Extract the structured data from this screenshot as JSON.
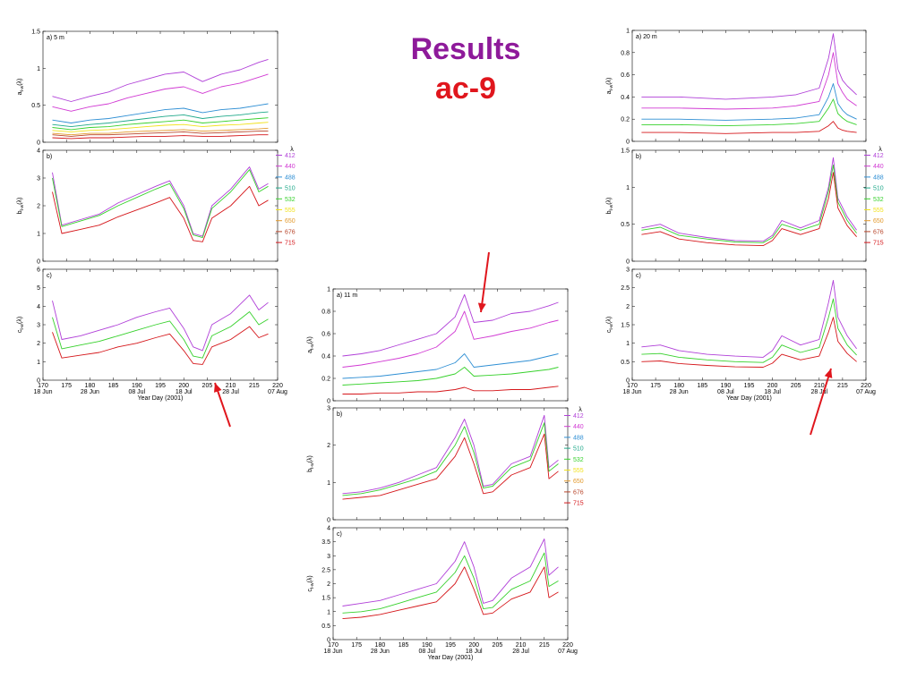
{
  "title": "Results",
  "subtitle": "ac-9",
  "colors": {
    "title": "#8e1a9a",
    "subtitle": "#e0161d",
    "arrow": "#e0161d"
  },
  "legend": {
    "title": "λ",
    "items": [
      {
        "label": "412",
        "color": "#b03fd8"
      },
      {
        "label": "440",
        "color": "#d13ad3"
      },
      {
        "label": "488",
        "color": "#2f8fd4"
      },
      {
        "label": "510",
        "color": "#1fa98a"
      },
      {
        "label": "532",
        "color": "#37d12c"
      },
      {
        "label": "555",
        "color": "#f1e21c"
      },
      {
        "label": "650",
        "color": "#e39a2d"
      },
      {
        "label": "676",
        "color": "#b8452a"
      },
      {
        "label": "715",
        "color": "#d5161a"
      }
    ]
  },
  "xaxis": {
    "label": "Year Day (2001)",
    "ticks": [
      170,
      175,
      180,
      185,
      190,
      195,
      200,
      205,
      210,
      215,
      220
    ],
    "dates": [
      {
        "x": 170,
        "label": "18 Jun"
      },
      {
        "x": 180,
        "label": "28 Jun"
      },
      {
        "x": 190,
        "label": "08 Jul"
      },
      {
        "x": 200,
        "label": "18 Jul"
      },
      {
        "x": 210,
        "label": "28 Jul"
      },
      {
        "x": 220,
        "label": "07 Aug"
      }
    ]
  },
  "chart_data": [
    {
      "type": "line",
      "group": "5 m",
      "panel": "a",
      "label": "a) 5 m",
      "ylabel_main": "a",
      "ylabel_sub": "t-w",
      "ylabel_suffix": "(λ)",
      "xlim": [
        170,
        220
      ],
      "ylim": [
        0,
        1.5
      ],
      "yticks": [
        0,
        0.5,
        1,
        1.5
      ],
      "series_x": [
        172,
        176,
        180,
        184,
        188,
        192,
        196,
        200,
        204,
        208,
        212,
        216,
        218
      ],
      "series": [
        {
          "name": "412",
          "values": [
            0.62,
            0.55,
            0.62,
            0.68,
            0.78,
            0.85,
            0.92,
            0.95,
            0.82,
            0.92,
            0.98,
            1.08,
            1.12
          ]
        },
        {
          "name": "440",
          "values": [
            0.48,
            0.42,
            0.48,
            0.52,
            0.6,
            0.66,
            0.72,
            0.75,
            0.66,
            0.75,
            0.8,
            0.88,
            0.92
          ]
        },
        {
          "name": "488",
          "values": [
            0.3,
            0.26,
            0.3,
            0.32,
            0.36,
            0.4,
            0.44,
            0.46,
            0.4,
            0.44,
            0.46,
            0.5,
            0.52
          ]
        },
        {
          "name": "510",
          "values": [
            0.24,
            0.21,
            0.24,
            0.26,
            0.29,
            0.32,
            0.35,
            0.37,
            0.32,
            0.35,
            0.37,
            0.4,
            0.41
          ]
        },
        {
          "name": "532",
          "values": [
            0.2,
            0.17,
            0.2,
            0.21,
            0.24,
            0.26,
            0.28,
            0.3,
            0.26,
            0.28,
            0.3,
            0.32,
            0.33
          ]
        },
        {
          "name": "555",
          "values": [
            0.16,
            0.14,
            0.16,
            0.17,
            0.19,
            0.21,
            0.23,
            0.24,
            0.21,
            0.23,
            0.24,
            0.26,
            0.27
          ]
        },
        {
          "name": "650",
          "values": [
            0.12,
            0.1,
            0.12,
            0.12,
            0.14,
            0.15,
            0.16,
            0.17,
            0.15,
            0.16,
            0.17,
            0.18,
            0.19
          ]
        },
        {
          "name": "676",
          "values": [
            0.1,
            0.08,
            0.1,
            0.1,
            0.11,
            0.12,
            0.13,
            0.14,
            0.12,
            0.13,
            0.14,
            0.15,
            0.15
          ]
        },
        {
          "name": "715",
          "values": [
            0.06,
            0.05,
            0.06,
            0.06,
            0.07,
            0.08,
            0.08,
            0.09,
            0.08,
            0.08,
            0.09,
            0.1,
            0.1
          ]
        }
      ]
    },
    {
      "type": "line",
      "group": "5 m",
      "panel": "b",
      "label": "b)",
      "ylabel_main": "b",
      "ylabel_sub": "t-w",
      "ylabel_suffix": "(λ)",
      "xlim": [
        170,
        220
      ],
      "ylim": [
        0,
        4
      ],
      "yticks": [
        0,
        1,
        2,
        3,
        4
      ],
      "series_x": [
        172,
        174,
        178,
        182,
        186,
        190,
        194,
        197,
        200,
        202,
        204,
        206,
        210,
        214,
        216,
        218
      ],
      "series": [
        {
          "name": "412",
          "values": [
            3.2,
            1.3,
            1.5,
            1.7,
            2.1,
            2.4,
            2.7,
            2.9,
            2.0,
            1.0,
            0.9,
            2.0,
            2.6,
            3.4,
            2.6,
            2.8
          ]
        },
        {
          "name": "532",
          "values": [
            3.0,
            1.25,
            1.45,
            1.65,
            2.0,
            2.3,
            2.6,
            2.8,
            1.9,
            0.95,
            0.85,
            1.9,
            2.5,
            3.3,
            2.5,
            2.7
          ]
        },
        {
          "name": "715",
          "values": [
            2.5,
            1.0,
            1.15,
            1.3,
            1.6,
            1.85,
            2.1,
            2.3,
            1.55,
            0.75,
            0.7,
            1.55,
            2.0,
            2.7,
            2.0,
            2.2
          ]
        }
      ]
    },
    {
      "type": "line",
      "group": "5 m",
      "panel": "c",
      "label": "c)",
      "ylabel_main": "c",
      "ylabel_sub": "t-w",
      "ylabel_suffix": "(λ)",
      "xlim": [
        170,
        220
      ],
      "ylim": [
        0,
        6
      ],
      "yticks": [
        0,
        1,
        2,
        3,
        4,
        5,
        6
      ],
      "series_x": [
        172,
        174,
        178,
        182,
        186,
        190,
        194,
        197,
        200,
        202,
        204,
        206,
        210,
        214,
        216,
        218
      ],
      "series": [
        {
          "name": "412",
          "values": [
            4.3,
            2.2,
            2.4,
            2.7,
            3.0,
            3.4,
            3.7,
            3.9,
            2.8,
            1.8,
            1.6,
            3.0,
            3.6,
            4.6,
            3.8,
            4.2
          ]
        },
        {
          "name": "532",
          "values": [
            3.4,
            1.7,
            1.9,
            2.1,
            2.4,
            2.7,
            3.0,
            3.2,
            2.2,
            1.3,
            1.2,
            2.4,
            2.9,
            3.7,
            3.0,
            3.3
          ]
        },
        {
          "name": "715",
          "values": [
            2.6,
            1.2,
            1.35,
            1.5,
            1.8,
            2.0,
            2.3,
            2.5,
            1.6,
            0.9,
            0.85,
            1.8,
            2.2,
            2.9,
            2.3,
            2.5
          ]
        }
      ]
    },
    {
      "type": "line",
      "group": "11 m",
      "panel": "a",
      "label": "a) 11 m",
      "ylabel_main": "a",
      "ylabel_sub": "t-w",
      "ylabel_suffix": "(λ)",
      "xlim": [
        170,
        220
      ],
      "ylim": [
        0,
        1
      ],
      "yticks": [
        0,
        0.2,
        0.4,
        0.6,
        0.8,
        1
      ],
      "series_x": [
        172,
        176,
        180,
        184,
        188,
        192,
        196,
        198,
        200,
        204,
        208,
        212,
        216,
        218
      ],
      "series": [
        {
          "name": "412",
          "values": [
            0.4,
            0.42,
            0.45,
            0.5,
            0.55,
            0.6,
            0.75,
            0.95,
            0.7,
            0.72,
            0.78,
            0.8,
            0.85,
            0.88
          ]
        },
        {
          "name": "440",
          "values": [
            0.3,
            0.32,
            0.35,
            0.38,
            0.42,
            0.48,
            0.62,
            0.8,
            0.55,
            0.58,
            0.62,
            0.65,
            0.7,
            0.72
          ]
        },
        {
          "name": "488",
          "values": [
            0.2,
            0.21,
            0.22,
            0.24,
            0.26,
            0.28,
            0.34,
            0.42,
            0.3,
            0.32,
            0.34,
            0.36,
            0.4,
            0.42
          ]
        },
        {
          "name": "532",
          "values": [
            0.14,
            0.15,
            0.16,
            0.17,
            0.18,
            0.2,
            0.24,
            0.3,
            0.22,
            0.23,
            0.24,
            0.26,
            0.28,
            0.3
          ]
        },
        {
          "name": "715",
          "values": [
            0.06,
            0.06,
            0.07,
            0.07,
            0.08,
            0.08,
            0.1,
            0.12,
            0.09,
            0.09,
            0.1,
            0.1,
            0.12,
            0.13
          ]
        }
      ]
    },
    {
      "type": "line",
      "group": "11 m",
      "panel": "b",
      "label": "b)",
      "ylabel_main": "b",
      "ylabel_sub": "t-w",
      "ylabel_suffix": "(λ)",
      "xlim": [
        170,
        220
      ],
      "ylim": [
        0,
        3
      ],
      "yticks": [
        0,
        1,
        2,
        3
      ],
      "series_x": [
        172,
        176,
        180,
        184,
        188,
        192,
        196,
        198,
        200,
        202,
        204,
        208,
        212,
        215,
        216,
        218
      ],
      "series": [
        {
          "name": "412",
          "values": [
            0.7,
            0.75,
            0.85,
            1.0,
            1.2,
            1.4,
            2.2,
            2.7,
            2.0,
            0.9,
            0.95,
            1.5,
            1.7,
            2.8,
            1.4,
            1.6
          ]
        },
        {
          "name": "532",
          "values": [
            0.65,
            0.7,
            0.8,
            0.95,
            1.1,
            1.3,
            2.0,
            2.5,
            1.8,
            0.85,
            0.9,
            1.4,
            1.6,
            2.6,
            1.3,
            1.5
          ]
        },
        {
          "name": "715",
          "values": [
            0.55,
            0.6,
            0.65,
            0.8,
            0.95,
            1.1,
            1.7,
            2.2,
            1.5,
            0.7,
            0.75,
            1.2,
            1.4,
            2.3,
            1.1,
            1.3
          ]
        }
      ]
    },
    {
      "type": "line",
      "group": "11 m",
      "panel": "c",
      "label": "c)",
      "ylabel_main": "c",
      "ylabel_sub": "t-w",
      "ylabel_suffix": "(λ)",
      "xlim": [
        170,
        220
      ],
      "ylim": [
        0,
        4
      ],
      "yticks": [
        0,
        0.5,
        1,
        1.5,
        2,
        2.5,
        3,
        3.5,
        4
      ],
      "series_x": [
        172,
        176,
        180,
        184,
        188,
        192,
        196,
        198,
        200,
        202,
        204,
        208,
        212,
        215,
        216,
        218
      ],
      "series": [
        {
          "name": "412",
          "values": [
            1.2,
            1.3,
            1.4,
            1.6,
            1.8,
            2.0,
            2.8,
            3.5,
            2.6,
            1.3,
            1.4,
            2.2,
            2.6,
            3.6,
            2.3,
            2.6
          ]
        },
        {
          "name": "532",
          "values": [
            0.95,
            1.0,
            1.1,
            1.3,
            1.5,
            1.7,
            2.4,
            3.0,
            2.2,
            1.1,
            1.15,
            1.8,
            2.1,
            3.1,
            1.9,
            2.1
          ]
        },
        {
          "name": "715",
          "values": [
            0.75,
            0.8,
            0.9,
            1.05,
            1.2,
            1.35,
            2.0,
            2.6,
            1.8,
            0.9,
            0.95,
            1.45,
            1.7,
            2.6,
            1.5,
            1.7
          ]
        }
      ]
    },
    {
      "type": "line",
      "group": "20 m",
      "panel": "a",
      "label": "a) 20 m",
      "ylabel_main": "a",
      "ylabel_sub": "t-w",
      "ylabel_suffix": "(λ)",
      "xlim": [
        170,
        220
      ],
      "ylim": [
        0,
        1
      ],
      "yticks": [
        0,
        0.2,
        0.4,
        0.6,
        0.8,
        1
      ],
      "series_x": [
        172,
        180,
        190,
        200,
        205,
        210,
        212,
        213,
        214,
        215,
        216,
        218
      ],
      "series": [
        {
          "name": "412",
          "values": [
            0.4,
            0.4,
            0.38,
            0.4,
            0.42,
            0.48,
            0.75,
            0.97,
            0.65,
            0.55,
            0.5,
            0.42
          ]
        },
        {
          "name": "440",
          "values": [
            0.3,
            0.3,
            0.29,
            0.3,
            0.32,
            0.36,
            0.6,
            0.8,
            0.52,
            0.44,
            0.38,
            0.32
          ]
        },
        {
          "name": "488",
          "values": [
            0.2,
            0.2,
            0.19,
            0.2,
            0.21,
            0.24,
            0.4,
            0.52,
            0.34,
            0.28,
            0.24,
            0.2
          ]
        },
        {
          "name": "532",
          "values": [
            0.15,
            0.15,
            0.14,
            0.15,
            0.16,
            0.18,
            0.3,
            0.38,
            0.25,
            0.21,
            0.18,
            0.15
          ]
        },
        {
          "name": "715",
          "values": [
            0.08,
            0.08,
            0.07,
            0.08,
            0.08,
            0.09,
            0.14,
            0.18,
            0.12,
            0.1,
            0.09,
            0.08
          ]
        }
      ]
    },
    {
      "type": "line",
      "group": "20 m",
      "panel": "b",
      "label": "b)",
      "ylabel_main": "b",
      "ylabel_sub": "t-w",
      "ylabel_suffix": "(λ)",
      "xlim": [
        170,
        220
      ],
      "ylim": [
        0,
        1.5
      ],
      "yticks": [
        0,
        0.5,
        1,
        1.5
      ],
      "series_x": [
        172,
        176,
        180,
        186,
        192,
        198,
        200,
        202,
        206,
        210,
        212,
        213,
        214,
        216,
        218
      ],
      "series": [
        {
          "name": "412",
          "values": [
            0.45,
            0.5,
            0.38,
            0.32,
            0.28,
            0.27,
            0.35,
            0.55,
            0.45,
            0.55,
            1.0,
            1.4,
            0.85,
            0.6,
            0.42
          ]
        },
        {
          "name": "532",
          "values": [
            0.42,
            0.46,
            0.35,
            0.3,
            0.26,
            0.25,
            0.32,
            0.5,
            0.42,
            0.5,
            0.95,
            1.3,
            0.8,
            0.55,
            0.38
          ]
        },
        {
          "name": "715",
          "values": [
            0.36,
            0.4,
            0.3,
            0.25,
            0.22,
            0.21,
            0.28,
            0.44,
            0.36,
            0.44,
            0.85,
            1.2,
            0.72,
            0.48,
            0.33
          ]
        }
      ]
    },
    {
      "type": "line",
      "group": "20 m",
      "panel": "c",
      "label": "c)",
      "ylabel_main": "c",
      "ylabel_sub": "t-w",
      "ylabel_suffix": "(λ)",
      "xlim": [
        170,
        220
      ],
      "ylim": [
        0,
        3
      ],
      "yticks": [
        0,
        0.5,
        1,
        1.5,
        2,
        2.5,
        3
      ],
      "series_x": [
        172,
        176,
        180,
        186,
        192,
        198,
        200,
        202,
        206,
        210,
        212,
        213,
        214,
        216,
        218
      ],
      "series": [
        {
          "name": "412",
          "values": [
            0.9,
            0.95,
            0.8,
            0.7,
            0.65,
            0.62,
            0.8,
            1.2,
            0.95,
            1.1,
            2.1,
            2.7,
            1.7,
            1.2,
            0.85
          ]
        },
        {
          "name": "532",
          "values": [
            0.7,
            0.72,
            0.62,
            0.55,
            0.5,
            0.48,
            0.62,
            0.95,
            0.75,
            0.88,
            1.7,
            2.2,
            1.4,
            0.95,
            0.68
          ]
        },
        {
          "name": "715",
          "values": [
            0.5,
            0.52,
            0.45,
            0.4,
            0.36,
            0.35,
            0.46,
            0.7,
            0.55,
            0.65,
            1.3,
            1.7,
            1.05,
            0.72,
            0.5
          ]
        }
      ]
    }
  ]
}
